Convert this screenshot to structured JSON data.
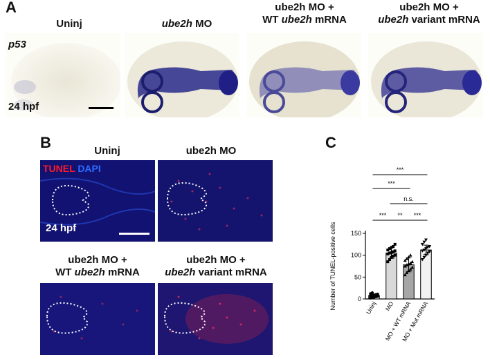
{
  "panels": {
    "a": {
      "letter": "A",
      "columns": [
        {
          "label": "Uninj"
        },
        {
          "label_it": "ube2h",
          "label_rest": " MO"
        },
        {
          "l1": "ube2h MO +",
          "l2_pre": "WT ",
          "l2_it": "ube2h",
          "l2_post": " mRNA"
        },
        {
          "l1": "ube2h MO +",
          "l2_it": "ube2h",
          "l2_post": " variant mRNA"
        }
      ],
      "gene": "p53",
      "stage": "24 hpf"
    },
    "b": {
      "letter": "B",
      "top_labels": [
        "Uninj",
        "ube2h MO"
      ],
      "bottom_labels": [
        {
          "l1": "ube2h MO +",
          "l2_pre": "WT ",
          "l2_it": "ube2h",
          "l2_post": " mRNA"
        },
        {
          "l1": "ube2h MO +",
          "l2_it": "ube2h",
          "l2_post": " variant mRNA"
        }
      ],
      "stain1": "TUNEL",
      "stain2": "DAPI",
      "stage": "24 hpf"
    },
    "c": {
      "letter": "C"
    }
  },
  "chart_data": {
    "type": "bar",
    "ylabel": "Number of TUNEL-positive cells",
    "categories": [
      "Uninj",
      "MO",
      "MO + WT mRNA",
      "MO + Mut mRNA"
    ],
    "values": [
      8,
      105,
      78,
      112
    ],
    "errors": [
      3,
      12,
      16,
      11
    ],
    "ylim": [
      0,
      150
    ],
    "yticks": [
      0,
      50,
      100,
      150
    ],
    "points": [
      [
        2,
        3,
        4,
        5,
        6,
        7,
        8,
        9,
        10,
        11,
        12,
        14
      ],
      [
        85,
        90,
        95,
        98,
        100,
        103,
        105,
        106,
        108,
        110,
        112,
        115,
        118,
        120,
        125
      ],
      [
        55,
        60,
        65,
        68,
        72,
        75,
        78,
        80,
        82,
        85,
        88,
        92,
        96,
        100
      ],
      [
        90,
        95,
        100,
        105,
        108,
        110,
        112,
        115,
        118,
        120,
        125,
        130,
        135
      ]
    ],
    "markers": [
      "circle",
      "square",
      "triangle-up",
      "triangle-down"
    ],
    "bar_colors": [
      "#ffffff",
      "#d9d9d9",
      "#a6a6a6",
      "#f2f2f2"
    ],
    "significance": [
      {
        "pair": [
          0,
          3
        ],
        "label": "***"
      },
      {
        "pair": [
          0,
          2
        ],
        "label": "***"
      },
      {
        "pair": [
          1,
          3
        ],
        "label": "n.s."
      },
      {
        "pair": [
          0,
          1
        ],
        "label": "***"
      },
      {
        "pair": [
          1,
          2
        ],
        "label": "**"
      },
      {
        "pair": [
          2,
          3
        ],
        "label": "***"
      }
    ]
  },
  "colors": {
    "wish_stain": "#2a2a8c",
    "tunel": "#ff1a2a",
    "dapi": "#1e3ccf"
  }
}
